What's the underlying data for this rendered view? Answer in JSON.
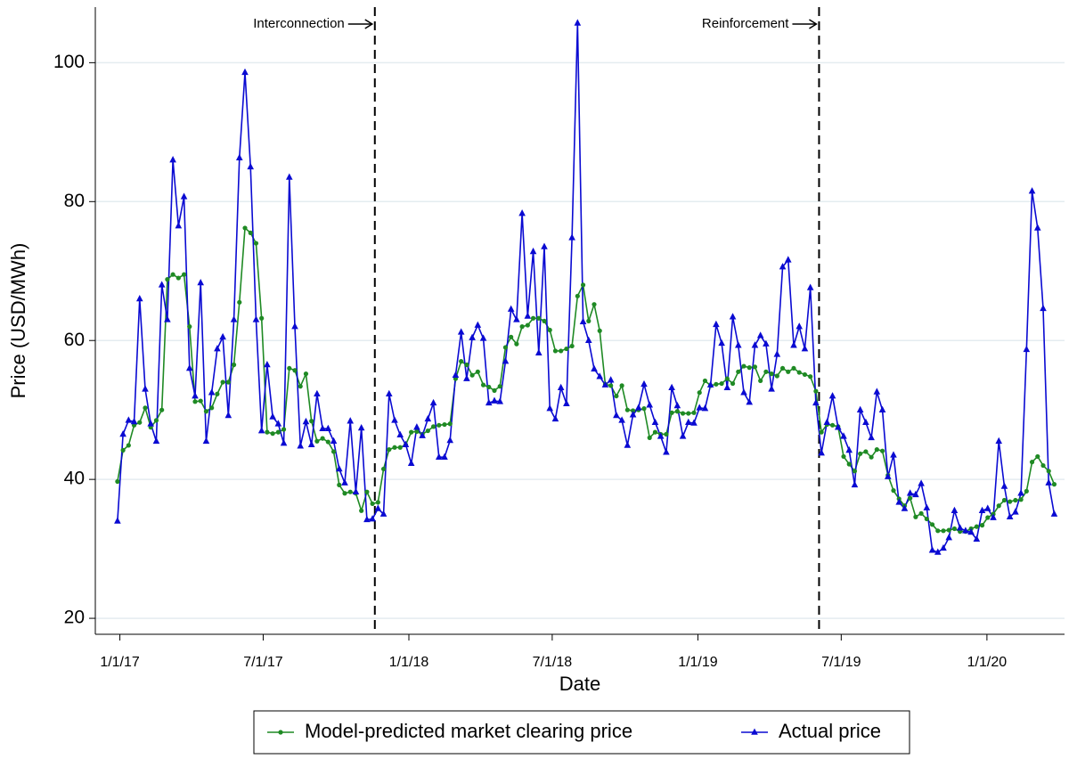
{
  "chart_data": {
    "type": "line",
    "x_label": "Date",
    "y_label": "Price (USD/MWh)",
    "x": [
      "2016-12-29",
      "2017-01-05",
      "2017-01-12",
      "2017-01-19",
      "2017-01-26",
      "2017-02-02",
      "2017-02-09",
      "2017-02-16",
      "2017-02-23",
      "2017-03-02",
      "2017-03-09",
      "2017-03-16",
      "2017-03-23",
      "2017-03-30",
      "2017-04-06",
      "2017-04-13",
      "2017-04-20",
      "2017-04-27",
      "2017-05-04",
      "2017-05-11",
      "2017-05-18",
      "2017-05-25",
      "2017-06-01",
      "2017-06-08",
      "2017-06-15",
      "2017-06-22",
      "2017-06-29",
      "2017-07-06",
      "2017-07-13",
      "2017-07-20",
      "2017-07-27",
      "2017-08-03",
      "2017-08-10",
      "2017-08-17",
      "2017-08-24",
      "2017-08-31",
      "2017-09-07",
      "2017-09-14",
      "2017-09-21",
      "2017-09-28",
      "2017-10-05",
      "2017-10-12",
      "2017-10-19",
      "2017-10-26",
      "2017-11-02",
      "2017-11-09",
      "2017-11-16",
      "2017-11-23",
      "2017-11-30",
      "2017-12-07",
      "2017-12-14",
      "2017-12-21",
      "2017-12-28",
      "2018-01-04",
      "2018-01-11",
      "2018-01-18",
      "2018-01-25",
      "2018-02-01",
      "2018-02-08",
      "2018-02-15",
      "2018-02-22",
      "2018-03-01",
      "2018-03-08",
      "2018-03-15",
      "2018-03-22",
      "2018-03-29",
      "2018-04-05",
      "2018-04-12",
      "2018-04-19",
      "2018-04-26",
      "2018-05-03",
      "2018-05-10",
      "2018-05-17",
      "2018-05-24",
      "2018-05-31",
      "2018-06-07",
      "2018-06-14",
      "2018-06-21",
      "2018-06-28",
      "2018-07-05",
      "2018-07-12",
      "2018-07-19",
      "2018-07-26",
      "2018-08-02",
      "2018-08-09",
      "2018-08-16",
      "2018-08-23",
      "2018-08-30",
      "2018-09-06",
      "2018-09-13",
      "2018-09-20",
      "2018-09-27",
      "2018-10-04",
      "2018-10-11",
      "2018-10-18",
      "2018-10-25",
      "2018-11-01",
      "2018-11-08",
      "2018-11-15",
      "2018-11-22",
      "2018-11-29",
      "2018-12-06",
      "2018-12-13",
      "2018-12-20",
      "2018-12-27",
      "2019-01-03",
      "2019-01-10",
      "2019-01-17",
      "2019-01-24",
      "2019-01-31",
      "2019-02-07",
      "2019-02-14",
      "2019-02-21",
      "2019-02-28",
      "2019-03-07",
      "2019-03-14",
      "2019-03-21",
      "2019-03-28",
      "2019-04-04",
      "2019-04-11",
      "2019-04-18",
      "2019-04-25",
      "2019-05-02",
      "2019-05-09",
      "2019-05-16",
      "2019-05-23",
      "2019-05-30",
      "2019-06-06",
      "2019-06-13",
      "2019-06-20",
      "2019-06-27",
      "2019-07-04",
      "2019-07-11",
      "2019-07-18",
      "2019-07-25",
      "2019-08-01",
      "2019-08-08",
      "2019-08-15",
      "2019-08-22",
      "2019-08-29",
      "2019-09-05",
      "2019-09-12",
      "2019-09-19",
      "2019-09-26",
      "2019-10-03",
      "2019-10-10",
      "2019-10-17",
      "2019-10-24",
      "2019-10-31",
      "2019-11-07",
      "2019-11-14",
      "2019-11-21",
      "2019-11-28",
      "2019-12-05",
      "2019-12-12",
      "2019-12-19",
      "2019-12-26",
      "2020-01-02",
      "2020-01-09",
      "2020-01-16",
      "2020-01-23",
      "2020-01-30",
      "2020-02-06",
      "2020-02-13",
      "2020-02-20",
      "2020-02-27",
      "2020-03-05",
      "2020-03-12",
      "2020-03-19",
      "2020-03-26"
    ],
    "series": [
      {
        "name": "Model-predicted market clearing price",
        "color": "#1f8a24",
        "marker": "circle",
        "values": [
          39.7,
          44.2,
          44.9,
          47.8,
          48.2,
          50.3,
          47.5,
          48.5,
          50,
          68.8,
          69.5,
          69,
          69.5,
          62,
          51.2,
          51.3,
          49.8,
          50.3,
          52.3,
          54,
          54,
          56.5,
          65.5,
          76.2,
          75.5,
          74,
          63.2,
          46.8,
          46.6,
          46.8,
          47.2,
          56,
          55.7,
          53.4,
          55.2,
          48.4,
          45.5,
          45.9,
          45.4,
          44,
          39.2,
          38,
          38.2,
          38,
          35.5,
          38.2,
          36.5,
          36.7,
          41.5,
          44.3,
          44.6,
          44.6,
          45,
          46.8,
          46.9,
          46.5,
          47,
          47.6,
          47.8,
          47.9,
          48,
          54.5,
          57,
          56.5,
          55,
          55.5,
          53.6,
          53.3,
          52.8,
          53.4,
          59,
          60.5,
          59.5,
          62,
          62.2,
          63.2,
          63.2,
          62.8,
          61.5,
          58.5,
          58.5,
          58.8,
          59.2,
          66.4,
          68,
          62.8,
          65.2,
          61.4,
          53.7,
          53.5,
          52,
          53.5,
          50,
          49.9,
          50,
          50.2,
          46,
          46.8,
          46.5,
          46.5,
          49.6,
          49.8,
          49.5,
          49.5,
          49.6,
          52.5,
          54.2,
          53.5,
          53.7,
          53.8,
          54.5,
          53.8,
          55.5,
          56.3,
          56.1,
          56.2,
          54.2,
          55.5,
          55.2,
          54.9,
          56,
          55.5,
          56,
          55.4,
          55.1,
          54.8,
          52.7,
          46.8,
          47.9,
          47.8,
          47.6,
          43.3,
          42.2,
          41.2,
          43.7,
          44,
          43.2,
          44.3,
          44.1,
          40.6,
          38.4,
          37.2,
          36.2,
          37.3,
          34.6,
          35.1,
          34.3,
          33.5,
          32.6,
          32.6,
          32.7,
          32.9,
          32.5,
          32.5,
          32.9,
          33.2,
          33.4,
          34.5,
          35,
          36.2,
          37,
          36.8,
          37,
          37.1,
          38.3,
          42.5,
          43.3,
          42,
          41.2,
          39.3
        ]
      },
      {
        "name": "Actual price",
        "color": "#0a0ad2",
        "marker": "triangle",
        "values": [
          34,
          46.5,
          48.5,
          48.3,
          66,
          53,
          48,
          45.5,
          68,
          63,
          86,
          76.5,
          80.7,
          56,
          52,
          68.3,
          45.5,
          52.5,
          58.8,
          60.5,
          49.2,
          63,
          86.3,
          98.6,
          85,
          63,
          47,
          56.5,
          49,
          48,
          45.2,
          83.5,
          62,
          44.8,
          48.3,
          45,
          52.3,
          47.3,
          47.3,
          45.5,
          41.5,
          39.5,
          48.4,
          38.2,
          47.4,
          34.2,
          34.3,
          35.8,
          35,
          52.3,
          48.5,
          46.4,
          45,
          42.3,
          47.5,
          46.3,
          48.7,
          51,
          43.2,
          43.2,
          45.6,
          55,
          61.2,
          54.5,
          60.4,
          62.2,
          60.3,
          51,
          51.3,
          51.2,
          57,
          64.5,
          63,
          78.3,
          63.5,
          72.8,
          58.2,
          73.5,
          50.2,
          48.7,
          53.2,
          50.9,
          74.8,
          105.7,
          62.7,
          60,
          55.9,
          54.8,
          53.6,
          54.3,
          49.2,
          48.5,
          44.9,
          49.3,
          50.3,
          53.7,
          50.7,
          48.2,
          46.2,
          43.9,
          53.2,
          50.6,
          46.2,
          48.2,
          48.1,
          50.3,
          50.2,
          53.6,
          62.3,
          59.6,
          53.2,
          63.4,
          59.3,
          52.5,
          51.1,
          59.3,
          60.7,
          59.5,
          53,
          58,
          70.6,
          71.6,
          59.3,
          62,
          58.8,
          67.6,
          51,
          43.8,
          48.2,
          52,
          47.5,
          46.2,
          44.2,
          39.2,
          50,
          48.2,
          46,
          52.6,
          50,
          40.4,
          43.5,
          36.7,
          35.8,
          38,
          37.8,
          39.4,
          35.9,
          29.8,
          29.5,
          30.1,
          31.6,
          35.5,
          33,
          32.6,
          32.4,
          31.4,
          35.5,
          35.8,
          34.5,
          45.5,
          39,
          34.6,
          35.3,
          38,
          58.7,
          81.5,
          76.2,
          64.6,
          39.5,
          35
        ]
      }
    ],
    "xlim": [
      "2016-12-01",
      "2020-04-08"
    ],
    "xticks": [
      {
        "value": "2017-01-01",
        "label": "1/1/17"
      },
      {
        "value": "2017-07-01",
        "label": "7/1/17"
      },
      {
        "value": "2018-01-01",
        "label": "1/1/18"
      },
      {
        "value": "2018-07-01",
        "label": "7/1/18"
      },
      {
        "value": "2019-01-01",
        "label": "1/1/19"
      },
      {
        "value": "2019-07-01",
        "label": "7/1/19"
      },
      {
        "value": "2020-01-01",
        "label": "1/1/20"
      }
    ],
    "ylim": [
      17.7,
      108
    ],
    "yticks": [
      20,
      40,
      60,
      80,
      100
    ],
    "grid": true,
    "grid_color": "#e4ecf0",
    "annotations": [
      {
        "text": "Interconnection",
        "x": "2017-11-19"
      },
      {
        "text": "Reinforcement",
        "x": "2019-06-03"
      }
    ],
    "legend": "bottom"
  }
}
